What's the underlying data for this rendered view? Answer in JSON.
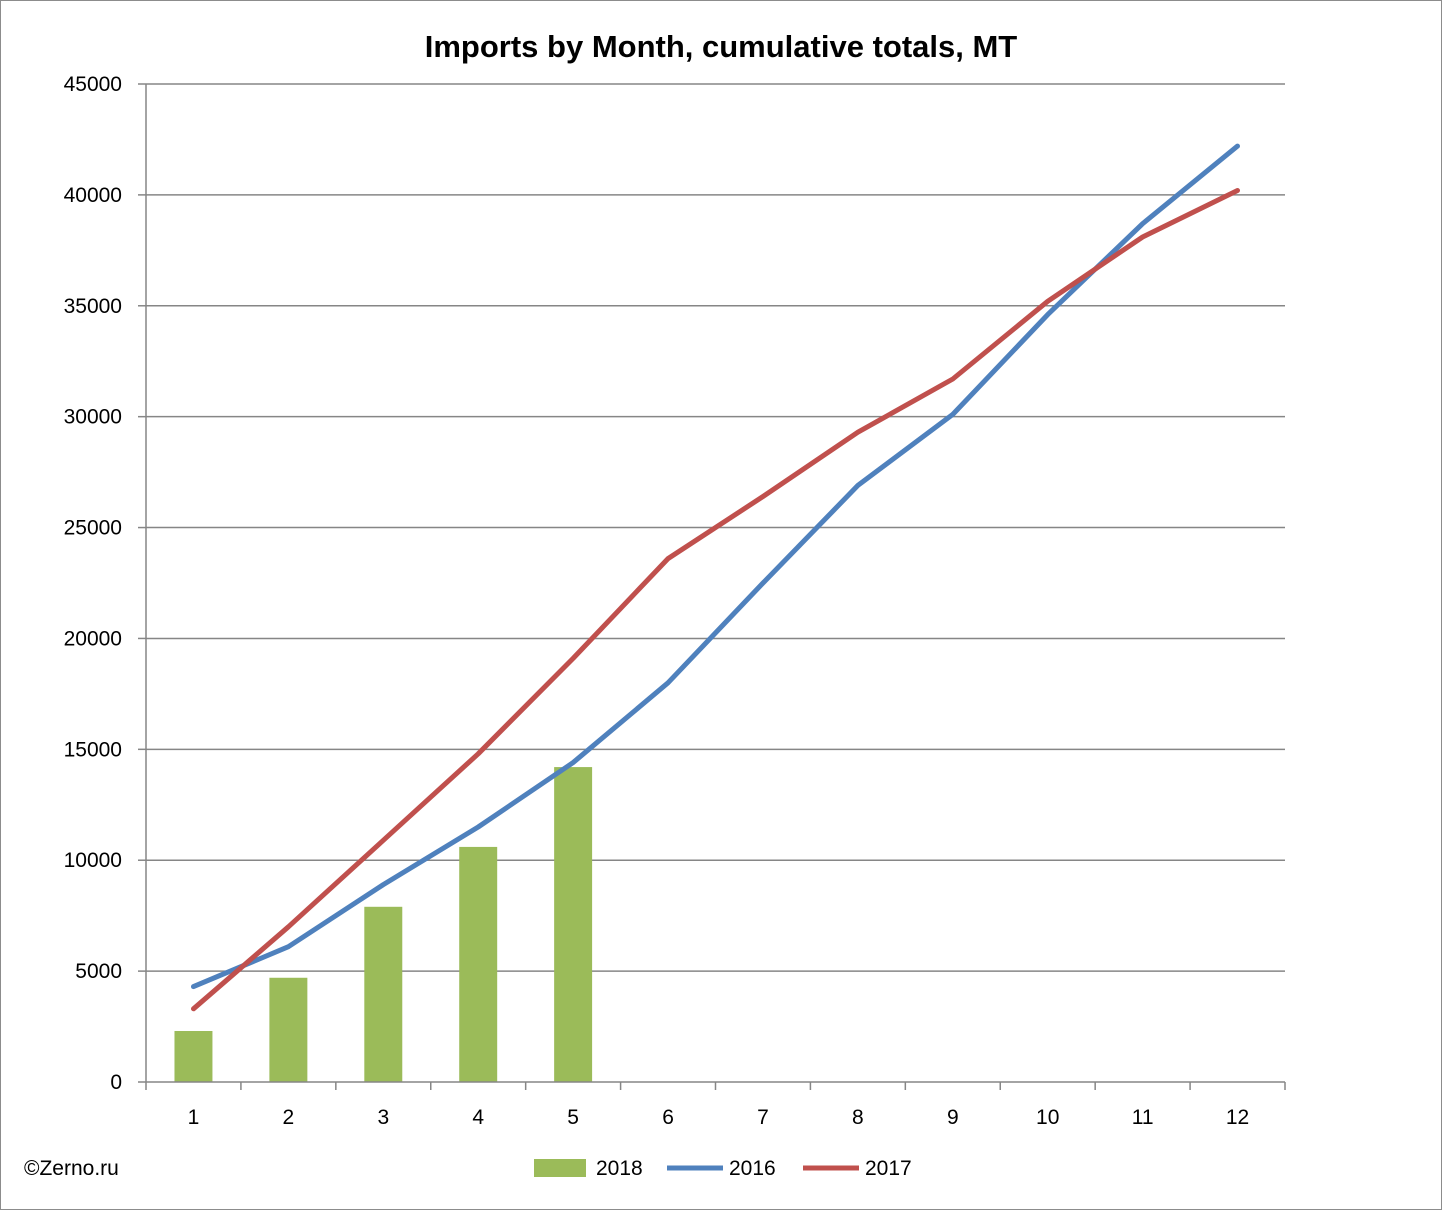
{
  "chart_data": {
    "type": "bar+line",
    "title": "Imports by Month, cumulative totals, MT",
    "xlabel": "",
    "ylabel": "",
    "categories": [
      "1",
      "2",
      "3",
      "4",
      "5",
      "6",
      "7",
      "8",
      "9",
      "10",
      "11",
      "12"
    ],
    "ylim": [
      0,
      45000
    ],
    "yticks": [
      0,
      5000,
      10000,
      15000,
      20000,
      25000,
      30000,
      35000,
      40000,
      45000
    ],
    "grid": true,
    "legend_position": "bottom",
    "series": [
      {
        "name": "2018",
        "kind": "bar",
        "color": "#9bbb59",
        "values": [
          2300,
          4700,
          7900,
          10600,
          14200,
          null,
          null,
          null,
          null,
          null,
          null,
          null
        ]
      },
      {
        "name": "2016",
        "kind": "line",
        "color": "#4f81bd",
        "values": [
          4300,
          6100,
          8900,
          11500,
          14400,
          18000,
          22500,
          26900,
          30100,
          34600,
          38700,
          42200
        ]
      },
      {
        "name": "2017",
        "kind": "line",
        "color": "#c0504d",
        "values": [
          3300,
          7000,
          10900,
          14800,
          19100,
          23600,
          26400,
          29300,
          31700,
          35200,
          38100,
          40200
        ]
      }
    ]
  },
  "credit": "©Zerno.ru"
}
